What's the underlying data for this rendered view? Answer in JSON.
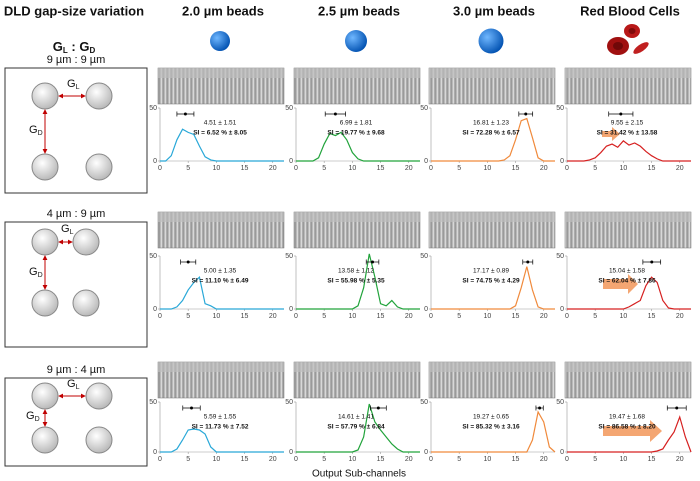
{
  "header": {
    "title": "DLD gap-size variation",
    "ratio": {
      "g1": "G",
      "s1": "L",
      "sep": " : ",
      "g2": "G",
      "s2": "D"
    },
    "columns": [
      "2.0 µm beads",
      "2.5 µm beads",
      "3.0 µm beads",
      "Red Blood Cells"
    ]
  },
  "rows": [
    {
      "label": "9 µm : 9 µm"
    },
    {
      "label": "4 µm : 9 µm"
    },
    {
      "label": "9 µm : 4 µm"
    }
  ],
  "diagram_labels": {
    "gl": {
      "g": "G",
      "s": "L"
    },
    "gd": {
      "g": "G",
      "s": "D"
    }
  },
  "x_label": "Output Sub-channels",
  "chart_data": [
    {
      "type": "line",
      "color": "#29a8d8",
      "x": [
        0,
        1,
        2,
        3,
        4,
        5,
        6,
        7,
        8,
        9,
        10,
        11,
        12,
        13,
        14,
        15,
        16,
        17,
        18,
        19,
        20,
        21,
        22
      ],
      "values": [
        0,
        0,
        5,
        20,
        30,
        27,
        25,
        14,
        4,
        1,
        0,
        0,
        0,
        0,
        0,
        0,
        0,
        0,
        0,
        0,
        0,
        0,
        0
      ],
      "xlim": [
        0,
        22
      ],
      "ylim": [
        0,
        50
      ],
      "xticks": [
        0,
        5,
        10,
        15,
        20
      ],
      "yticks": [
        0,
        50
      ],
      "mean": 4.51,
      "sd": 1.51,
      "annotation": "4.51 ± 1.51",
      "si": "SI = 6.52 % ± 8.05"
    },
    {
      "type": "line",
      "color": "#21a33b",
      "x": [
        0,
        1,
        2,
        3,
        4,
        5,
        6,
        7,
        8,
        9,
        10,
        11,
        12,
        13,
        14,
        15,
        16,
        17,
        18,
        19,
        20,
        21,
        22
      ],
      "values": [
        0,
        0,
        0,
        0,
        3,
        16,
        26,
        24,
        27,
        20,
        8,
        2,
        0,
        0,
        0,
        0,
        0,
        0,
        0,
        0,
        0,
        0,
        0
      ],
      "xlim": [
        0,
        22
      ],
      "ylim": [
        0,
        50
      ],
      "xticks": [
        0,
        5,
        10,
        15,
        20
      ],
      "yticks": [
        0,
        50
      ],
      "mean": 6.99,
      "sd": 1.81,
      "annotation": "6.99 ± 1.81",
      "si": "SI = 19.77 % ± 9.68"
    },
    {
      "type": "line",
      "color": "#f08a3c",
      "x": [
        0,
        1,
        2,
        3,
        4,
        5,
        6,
        7,
        8,
        9,
        10,
        11,
        12,
        13,
        14,
        15,
        16,
        17,
        18,
        19,
        20,
        21,
        22
      ],
      "values": [
        0,
        0,
        0,
        0,
        0,
        0,
        0,
        0,
        0,
        0,
        0,
        0,
        0,
        1,
        5,
        20,
        38,
        40,
        22,
        3,
        0,
        0,
        0
      ],
      "xlim": [
        0,
        22
      ],
      "ylim": [
        0,
        50
      ],
      "xticks": [
        0,
        5,
        10,
        15,
        20
      ],
      "yticks": [
        0,
        50
      ],
      "mean": 16.81,
      "sd": 1.23,
      "annotation": "16.81 ± 1.23",
      "si": "SI = 72.28 % ± 6.57"
    },
    {
      "type": "line",
      "color": "#d62020",
      "x": [
        0,
        1,
        2,
        3,
        4,
        5,
        6,
        7,
        8,
        9,
        10,
        11,
        12,
        13,
        14,
        15,
        16,
        17,
        18,
        19,
        20,
        21,
        22
      ],
      "values": [
        0,
        0,
        0,
        0,
        1,
        3,
        8,
        14,
        16,
        13,
        19,
        15,
        17,
        14,
        9,
        5,
        2,
        0,
        0,
        0,
        0,
        0,
        0
      ],
      "xlim": [
        0,
        22
      ],
      "ylim": [
        0,
        50
      ],
      "xticks": [
        0,
        5,
        10,
        15,
        20
      ],
      "yticks": [
        0,
        50
      ],
      "mean": 9.55,
      "sd": 2.15,
      "annotation": "9.55 ± 2.15",
      "si": "SI = 31.42 % ± 13.58"
    },
    {
      "type": "line",
      "color": "#29a8d8",
      "x": [
        0,
        1,
        2,
        3,
        4,
        5,
        6,
        7,
        8,
        9,
        10,
        11,
        12,
        13,
        14,
        15,
        16,
        17,
        18,
        19,
        20,
        21,
        22
      ],
      "values": [
        0,
        0,
        0,
        2,
        8,
        18,
        25,
        30,
        5,
        3,
        0,
        0,
        0,
        0,
        0,
        0,
        0,
        0,
        0,
        0,
        0,
        0,
        0
      ],
      "xlim": [
        0,
        22
      ],
      "ylim": [
        0,
        50
      ],
      "xticks": [
        0,
        5,
        10,
        15,
        20
      ],
      "yticks": [
        0,
        50
      ],
      "mean": 5.0,
      "sd": 1.35,
      "annotation": "5.00 ± 1.35",
      "si": "SI = 11.10 % ± 6.49"
    },
    {
      "type": "line",
      "color": "#21a33b",
      "x": [
        0,
        1,
        2,
        3,
        4,
        5,
        6,
        7,
        8,
        9,
        10,
        11,
        12,
        13,
        14,
        15,
        16,
        17,
        18,
        19,
        20,
        21,
        22
      ],
      "values": [
        0,
        0,
        0,
        0,
        0,
        0,
        0,
        0,
        0,
        0,
        0,
        3,
        20,
        52,
        30,
        5,
        3,
        8,
        2,
        0,
        0,
        0,
        0
      ],
      "xlim": [
        0,
        22
      ],
      "ylim": [
        0,
        50
      ],
      "xticks": [
        0,
        5,
        10,
        15,
        20
      ],
      "yticks": [
        0,
        50
      ],
      "mean": 13.58,
      "sd": 1.12,
      "annotation": "13.58 ± 1.12",
      "si": "SI = 55.98 % ± 5.35"
    },
    {
      "type": "line",
      "color": "#f08a3c",
      "x": [
        0,
        1,
        2,
        3,
        4,
        5,
        6,
        7,
        8,
        9,
        10,
        11,
        12,
        13,
        14,
        15,
        16,
        17,
        18,
        19,
        20,
        21,
        22
      ],
      "values": [
        0,
        0,
        0,
        0,
        0,
        0,
        0,
        0,
        0,
        0,
        0,
        0,
        0,
        0,
        0,
        3,
        20,
        40,
        18,
        2,
        0,
        0,
        0
      ],
      "xlim": [
        0,
        22
      ],
      "ylim": [
        0,
        50
      ],
      "xticks": [
        0,
        5,
        10,
        15,
        20
      ],
      "yticks": [
        0,
        50
      ],
      "mean": 17.17,
      "sd": 0.89,
      "annotation": "17.17 ± 0.89",
      "si": "SI = 74.75 % ± 4.29"
    },
    {
      "type": "line",
      "color": "#d62020",
      "x": [
        0,
        1,
        2,
        3,
        4,
        5,
        6,
        7,
        8,
        9,
        10,
        11,
        12,
        13,
        14,
        15,
        16,
        17,
        18,
        19,
        20,
        21,
        22
      ],
      "values": [
        0,
        0,
        0,
        0,
        0,
        0,
        0,
        0,
        0,
        0,
        0,
        2,
        5,
        8,
        22,
        30,
        25,
        8,
        1,
        0,
        0,
        0,
        0
      ],
      "xlim": [
        0,
        22
      ],
      "ylim": [
        0,
        50
      ],
      "xticks": [
        0,
        5,
        10,
        15,
        20
      ],
      "yticks": [
        0,
        50
      ],
      "mean": 15.04,
      "sd": 1.58,
      "annotation": "15.04 ± 1.58",
      "si": "SI = 62.04 % ± 7.86"
    },
    {
      "type": "line",
      "color": "#29a8d8",
      "x": [
        0,
        1,
        2,
        3,
        4,
        5,
        6,
        7,
        8,
        9,
        10,
        11,
        12,
        13,
        14,
        15,
        16,
        17,
        18,
        19,
        20,
        21,
        22
      ],
      "values": [
        0,
        0,
        0,
        3,
        12,
        22,
        23,
        22,
        18,
        5,
        0,
        0,
        0,
        0,
        0,
        0,
        0,
        0,
        0,
        0,
        0,
        0,
        0
      ],
      "xlim": [
        0,
        22
      ],
      "ylim": [
        0,
        50
      ],
      "xticks": [
        0,
        5,
        10,
        15,
        20
      ],
      "yticks": [
        0,
        50
      ],
      "mean": 5.59,
      "sd": 1.55,
      "annotation": "5.59 ± 1.55",
      "si": "SI = 11.73 % ± 7.52"
    },
    {
      "type": "line",
      "color": "#21a33b",
      "x": [
        0,
        1,
        2,
        3,
        4,
        5,
        6,
        7,
        8,
        9,
        10,
        11,
        12,
        13,
        14,
        15,
        16,
        17,
        18,
        19,
        20,
        21,
        22
      ],
      "values": [
        0,
        0,
        0,
        0,
        0,
        0,
        0,
        0,
        0,
        0,
        0,
        2,
        15,
        48,
        30,
        22,
        15,
        8,
        3,
        0,
        0,
        0,
        0
      ],
      "xlim": [
        0,
        22
      ],
      "ylim": [
        0,
        50
      ],
      "xticks": [
        0,
        5,
        10,
        15,
        20
      ],
      "yticks": [
        0,
        50
      ],
      "mean": 14.61,
      "sd": 1.41,
      "annotation": "14.61 ± 1.41",
      "si": "SI = 57.79 % ± 6.84"
    },
    {
      "type": "line",
      "color": "#f08a3c",
      "x": [
        0,
        1,
        2,
        3,
        4,
        5,
        6,
        7,
        8,
        9,
        10,
        11,
        12,
        13,
        14,
        15,
        16,
        17,
        18,
        19,
        20,
        21,
        22
      ],
      "values": [
        0,
        0,
        0,
        0,
        0,
        0,
        0,
        0,
        0,
        0,
        0,
        0,
        0,
        0,
        0,
        0,
        0,
        0,
        12,
        40,
        30,
        5,
        0
      ],
      "xlim": [
        0,
        22
      ],
      "ylim": [
        0,
        50
      ],
      "xticks": [
        0,
        5,
        10,
        15,
        20
      ],
      "yticks": [
        0,
        50
      ],
      "mean": 19.27,
      "sd": 0.65,
      "annotation": "19.27 ± 0.65",
      "si": "SI = 85.32 % ± 3.16"
    },
    {
      "type": "line",
      "color": "#d62020",
      "x": [
        0,
        1,
        2,
        3,
        4,
        5,
        6,
        7,
        8,
        9,
        10,
        11,
        12,
        13,
        14,
        15,
        16,
        17,
        18,
        19,
        20,
        21,
        22
      ],
      "values": [
        0,
        0,
        0,
        0,
        0,
        0,
        0,
        0,
        0,
        0,
        0,
        0,
        0,
        0,
        0,
        0,
        1,
        3,
        12,
        20,
        35,
        15,
        0
      ],
      "xlim": [
        0,
        22
      ],
      "ylim": [
        0,
        50
      ],
      "xticks": [
        0,
        5,
        10,
        15,
        20
      ],
      "yticks": [
        0,
        50
      ],
      "mean": 19.47,
      "sd": 1.68,
      "annotation": "19.47 ± 1.68",
      "si": "SI = 86.58 % ± 8.20"
    }
  ]
}
